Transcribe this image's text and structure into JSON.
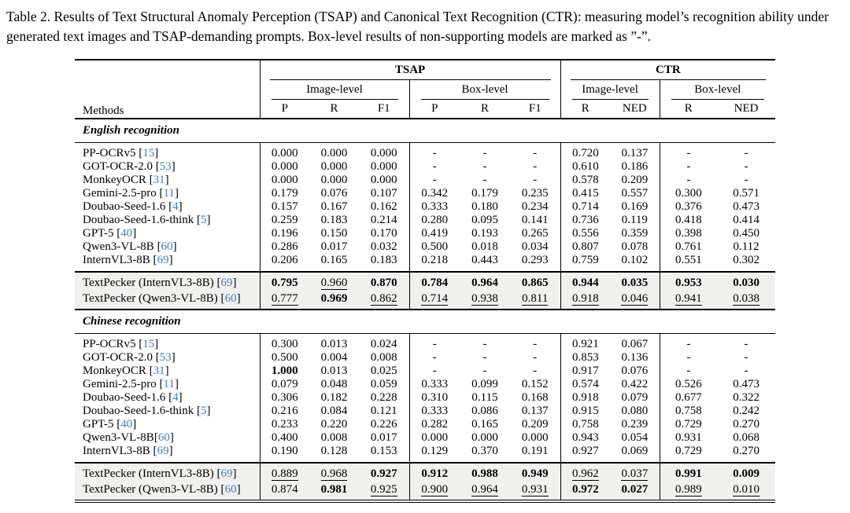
{
  "caption": {
    "text": "Table 2. Results of Text Structural Anomaly Perception (TSAP) and Canonical Text Recognition (CTR): measuring model’s recognition ability under generated text images and TSAP-demanding prompts. Box-level results of non-supporting models are marked as ”-”."
  },
  "colors": {
    "citation_blue": "#3d7dc8",
    "highlight_bg": "#f0f0ee"
  },
  "table": {
    "methods_header": "Methods",
    "groups": [
      {
        "label": "TSAP",
        "subgroups": [
          {
            "label": "Image-level"
          },
          {
            "label": "Box-level"
          }
        ]
      },
      {
        "label": "CTR",
        "subgroups": [
          {
            "label": "Image-level"
          },
          {
            "label": "Box-level"
          }
        ]
      }
    ],
    "col_headers": [
      "P",
      "R",
      "F1",
      "P",
      "R",
      "F1",
      "R",
      "NED",
      "R",
      "NED"
    ],
    "sections": [
      {
        "title": "English recognition",
        "rows": [
          {
            "method": "PP-OCRv5",
            "cite": "15",
            "sp": true,
            "cells": [
              "0.000",
              "0.000",
              "0.000",
              "-",
              "-",
              "-",
              "0.720",
              "0.137",
              "-",
              "-"
            ]
          },
          {
            "method": "GOT-OCR-2.0",
            "cite": "53",
            "sp": true,
            "cells": [
              "0.000",
              "0.000",
              "0.000",
              "-",
              "-",
              "-",
              "0.610",
              "0.186",
              "-",
              "-"
            ]
          },
          {
            "method": "MonkeyOCR",
            "cite": "31",
            "sp": true,
            "cells": [
              "0.000",
              "0.000",
              "0.000",
              "-",
              "-",
              "-",
              "0.578",
              "0.209",
              "-",
              "-"
            ]
          },
          {
            "method": "Gemini-2.5-pro",
            "cite": "11",
            "sp": true,
            "cells": [
              "0.179",
              "0.076",
              "0.107",
              "0.342",
              "0.179",
              "0.235",
              "0.415",
              "0.557",
              "0.300",
              "0.571"
            ]
          },
          {
            "method": "Doubao-Seed-1.6",
            "cite": "4",
            "sp": true,
            "cells": [
              "0.157",
              "0.167",
              "0.162",
              "0.333",
              "0.180",
              "0.234",
              "0.714",
              "0.169",
              "0.376",
              "0.473"
            ]
          },
          {
            "method": "Doubao-Seed-1.6-think",
            "cite": "5",
            "sp": true,
            "cells": [
              "0.259",
              "0.183",
              "0.214",
              "0.280",
              "0.095",
              "0.141",
              "0.736",
              "0.119",
              "0.418",
              "0.414"
            ]
          },
          {
            "method": "GPT-5",
            "cite": "40",
            "sp": true,
            "cells": [
              "0.196",
              "0.150",
              "0.170",
              "0.419",
              "0.193",
              "0.265",
              "0.556",
              "0.359",
              "0.398",
              "0.450"
            ]
          },
          {
            "method": "Qwen3-VL-8B",
            "cite": "60",
            "sp": true,
            "cells": [
              "0.286",
              "0.017",
              "0.032",
              "0.500",
              "0.018",
              "0.034",
              "0.807",
              "0.078",
              "0.761",
              "0.112"
            ]
          },
          {
            "method": "InternVL3-8B",
            "cite": "69",
            "sp": true,
            "cells": [
              "0.206",
              "0.165",
              "0.183",
              "0.218",
              "0.443",
              "0.293",
              "0.759",
              "0.102",
              "0.551",
              "0.302"
            ]
          }
        ],
        "highlight_rows": [
          {
            "method": "TextPecker (InternVL3-8B)",
            "cite": "69",
            "sp": true,
            "cells": [
              "b:0.795",
              "u:0.960",
              "b:0.870",
              "b:0.784",
              "b:0.964",
              "b:0.865",
              "b:0.944",
              "b:0.035",
              "b:0.953",
              "b:0.030"
            ]
          },
          {
            "method": "TextPecker (Qwen3-VL-8B)",
            "cite": "60",
            "sp": true,
            "cells": [
              "u:0.777",
              "b:0.969",
              "u:0.862",
              "u:0.714",
              "u:0.938",
              "u:0.811",
              "u:0.918",
              "u:0.046",
              "u:0.941",
              "u:0.038"
            ]
          }
        ]
      },
      {
        "title": "Chinese recognition",
        "rows": [
          {
            "method": "PP-OCRv5",
            "cite": "15",
            "sp": true,
            "cells": [
              "0.300",
              "0.013",
              "0.024",
              "-",
              "-",
              "-",
              "0.921",
              "0.067",
              "-",
              "-"
            ]
          },
          {
            "method": "GOT-OCR-2.0",
            "cite": "53",
            "sp": true,
            "cells": [
              "0.500",
              "0.004",
              "0.008",
              "-",
              "-",
              "-",
              "0.853",
              "0.136",
              "-",
              "-"
            ]
          },
          {
            "method": "MonkeyOCR",
            "cite": "31",
            "sp": true,
            "cells": [
              "b:1.000",
              "0.013",
              "0.025",
              "-",
              "-",
              "-",
              "0.917",
              "0.076",
              "-",
              "-"
            ]
          },
          {
            "method": "Gemini-2.5-pro",
            "cite": "11",
            "sp": true,
            "cells": [
              "0.079",
              "0.048",
              "0.059",
              "0.333",
              "0.099",
              "0.152",
              "0.574",
              "0.422",
              "0.526",
              "0.473"
            ]
          },
          {
            "method": "Doubao-Seed-1.6",
            "cite": "4",
            "sp": true,
            "cells": [
              "0.306",
              "0.182",
              "0.228",
              "0.310",
              "0.115",
              "0.168",
              "0.918",
              "0.079",
              "0.677",
              "0.322"
            ]
          },
          {
            "method": "Doubao-Seed-1.6-think",
            "cite": "5",
            "sp": true,
            "cells": [
              "0.216",
              "0.084",
              "0.121",
              "0.333",
              "0.086",
              "0.137",
              "0.915",
              "0.080",
              "0.758",
              "0.242"
            ]
          },
          {
            "method": "GPT-5",
            "cite": "40",
            "sp": true,
            "cells": [
              "0.233",
              "0.220",
              "0.226",
              "0.282",
              "0.165",
              "0.209",
              "0.758",
              "0.239",
              "0.729",
              "0.270"
            ]
          },
          {
            "method": "Qwen3-VL-8B",
            "cite": "60",
            "sp": false,
            "cells": [
              "0.400",
              "0.008",
              "0.017",
              "0.000",
              "0.000",
              "0.000",
              "0.943",
              "0.054",
              "0.931",
              "0.068"
            ]
          },
          {
            "method": "InternVL3-8B",
            "cite": "69",
            "sp": true,
            "cells": [
              "0.190",
              "0.128",
              "0.153",
              "0.129",
              "0.370",
              "0.191",
              "0.927",
              "0.069",
              "0.729",
              "0.270"
            ]
          }
        ],
        "highlight_rows": [
          {
            "method": "TextPecker (InternVL3-8B)",
            "cite": "69",
            "sp": true,
            "cells": [
              "u:0.889",
              "u:0.968",
              "b:0.927",
              "b:0.912",
              "b:0.988",
              "b:0.949",
              "u:0.962",
              "u:0.037",
              "b:0.991",
              "b:0.009"
            ]
          },
          {
            "method": "TextPecker (Qwen3-VL-8B)",
            "cite": "60",
            "sp": true,
            "cells": [
              "0.874",
              "b:0.981",
              "u:0.925",
              "u:0.900",
              "u:0.964",
              "u:0.931",
              "b:0.972",
              "b:0.027",
              "u:0.989",
              "u:0.010"
            ]
          }
        ]
      }
    ]
  }
}
